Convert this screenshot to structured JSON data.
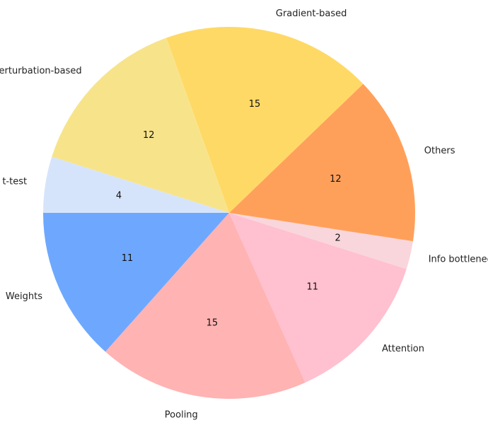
{
  "chart_data": {
    "type": "pie",
    "slices": [
      {
        "label": "Weights",
        "value": 11,
        "color": "#6ea8fe"
      },
      {
        "label": "Pooling",
        "value": 15,
        "color": "#ffb3b3"
      },
      {
        "label": "Attention",
        "value": 11,
        "color": "#ffc0cf"
      },
      {
        "label": "Info bottleneck",
        "value": 2,
        "color": "#f9d6dc"
      },
      {
        "label": "Others",
        "value": 12,
        "color": "#ffa05a"
      },
      {
        "label": "Gradient-based",
        "value": 15,
        "color": "#ffd966"
      },
      {
        "label": "Perturbation-based",
        "value": 12,
        "color": "#f7e48a"
      },
      {
        "label": "t-test",
        "value": 4,
        "color": "#d6e4fb"
      }
    ],
    "start_angle_deg": 180,
    "direction": "counterclockwise",
    "show_values": true
  }
}
